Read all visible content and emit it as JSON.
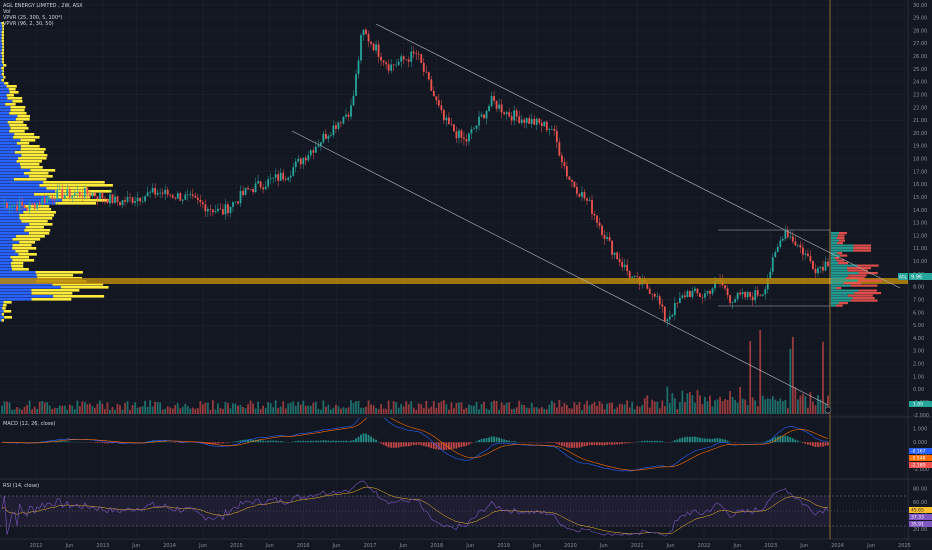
{
  "legend": {
    "title": "AGL ENERGY LIMITED , 2W, ASX",
    "vol": "Vol",
    "vpvr1": "VPVR (25, 300, 5, 100*)",
    "vpvr2": "VPVR (96, 2, 30, 50)",
    "macd": "MACD (12, 26, close)",
    "rsi": "RSI (14, close)"
  },
  "price_axis": {
    "ticks": [
      "30.00",
      "29.00",
      "28.00",
      "27.00",
      "26.00",
      "25.00",
      "24.00",
      "23.00",
      "22.00",
      "21.00",
      "20.00",
      "19.00",
      "18.00",
      "17.00",
      "16.00",
      "15.00",
      "14.00",
      "13.00",
      "12.00",
      "11.00",
      "10.00",
      "9.00",
      "8.00",
      "7.00",
      "6.00",
      "5.00",
      "4.00",
      "3.00",
      "2.00",
      "1.00",
      "0.00",
      "-1.000",
      "-2.000"
    ],
    "current_label": "AGL",
    "current_value": "9.96",
    "second_label": "1.00",
    "current_color": "#26a69a"
  },
  "macd_axis": {
    "ticks": [
      "1.000",
      "0.000",
      "-1.000",
      "-2.000"
    ],
    "label_1": "-0.167",
    "label_2": "-0.548",
    "label_3": "-2.180"
  },
  "rsi_axis": {
    "ticks": [
      "80.00",
      "60.00",
      "40.00",
      "20.00"
    ],
    "label_1": "45.65",
    "label_2": "37.33",
    "label_3": "35.91"
  },
  "time_axis": [
    {
      "label": "2012"
    },
    {
      "label": "Jun"
    },
    {
      "label": "2013"
    },
    {
      "label": "Jun"
    },
    {
      "label": "2014"
    },
    {
      "label": "Jun"
    },
    {
      "label": "2015"
    },
    {
      "label": "Jun"
    },
    {
      "label": "2016"
    },
    {
      "label": "Jun"
    },
    {
      "label": "2017"
    },
    {
      "label": "Jun"
    },
    {
      "label": "2018"
    },
    {
      "label": "Jun"
    },
    {
      "label": "2019"
    },
    {
      "label": "Jun"
    },
    {
      "label": "2020"
    },
    {
      "label": "Jun"
    },
    {
      "label": "2021"
    },
    {
      "label": "Jun"
    },
    {
      "label": "2022"
    },
    {
      "label": "Jun"
    },
    {
      "label": "2023"
    },
    {
      "label": "Jun"
    },
    {
      "label": "2024"
    },
    {
      "label": "Jun"
    },
    {
      "label": "2025"
    },
    {
      "label": "Jun"
    }
  ],
  "colors": {
    "background": "#131722",
    "up": "#26a69a",
    "down": "#ef5350",
    "poc_line": "#b8860b",
    "vp_left_blue": "#2962ff",
    "vp_left_yellow": "#ffeb3b",
    "vp_right_green": "#26a69a",
    "vp_right_red": "#ef5350",
    "macd_line": "#2962ff",
    "signal_line": "#ff6d00",
    "rsi_line": "#7e57c2",
    "trendline": "#b2b5be",
    "cursor": "#e0a040"
  },
  "chart_data": {
    "type": "candlestick",
    "symbol": "AGL ENERGY LIMITED",
    "interval": "2W",
    "exchange": "ASX",
    "price_ylim": [
      -2,
      30
    ],
    "close_path": [
      {
        "date": "2011-09",
        "close": 14.5
      },
      {
        "date": "2012-01",
        "close": 14.2
      },
      {
        "date": "2012-06",
        "close": 15.2
      },
      {
        "date": "2013-01",
        "close": 15.3
      },
      {
        "date": "2013-06",
        "close": 14.6
      },
      {
        "date": "2014-01",
        "close": 15.4
      },
      {
        "date": "2014-06",
        "close": 15.0
      },
      {
        "date": "2015-01",
        "close": 13.8
      },
      {
        "date": "2015-06",
        "close": 15.6
      },
      {
        "date": "2016-01",
        "close": 16.8
      },
      {
        "date": "2016-06",
        "close": 18.9
      },
      {
        "date": "2017-01",
        "close": 22.0
      },
      {
        "date": "2017-03",
        "close": 28.0
      },
      {
        "date": "2017-08",
        "close": 25.2
      },
      {
        "date": "2018-01",
        "close": 26.2
      },
      {
        "date": "2018-06",
        "close": 21.0
      },
      {
        "date": "2018-10",
        "close": 19.3
      },
      {
        "date": "2019-03",
        "close": 22.5
      },
      {
        "date": "2019-06",
        "close": 21.5
      },
      {
        "date": "2019-11",
        "close": 20.8
      },
      {
        "date": "2020-02",
        "close": 20.4
      },
      {
        "date": "2020-05",
        "close": 16.6
      },
      {
        "date": "2020-09",
        "close": 14.4
      },
      {
        "date": "2021-01",
        "close": 11.0
      },
      {
        "date": "2021-05",
        "close": 8.6
      },
      {
        "date": "2021-09",
        "close": 7.6
      },
      {
        "date": "2021-11",
        "close": 5.4
      },
      {
        "date": "2022-03",
        "close": 7.6
      },
      {
        "date": "2022-06",
        "close": 7.3
      },
      {
        "date": "2022-09",
        "close": 8.5
      },
      {
        "date": "2022-11",
        "close": 7.1
      },
      {
        "date": "2023-03",
        "close": 7.3
      },
      {
        "date": "2023-05",
        "close": 7.6
      },
      {
        "date": "2023-07",
        "close": 10.0
      },
      {
        "date": "2023-09",
        "close": 12.5
      },
      {
        "date": "2023-12",
        "close": 11.0
      },
      {
        "date": "2024-03",
        "close": 9.4
      },
      {
        "date": "2024-05",
        "close": 9.96
      }
    ],
    "poc_price": 9.6,
    "macd_ylim": [
      -2.5,
      1.5
    ],
    "rsi_ylim": [
      10,
      90
    ]
  }
}
